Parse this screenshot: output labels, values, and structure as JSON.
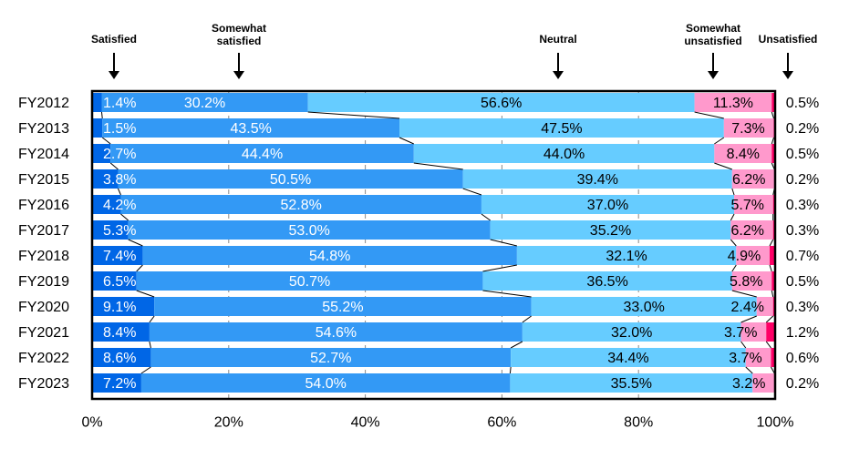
{
  "chart_data": {
    "type": "bar",
    "orientation": "horizontal",
    "stacked": true,
    "percent": true,
    "categories": [
      "FY2012",
      "FY2013",
      "FY2014",
      "FY2015",
      "FY2016",
      "FY2017",
      "FY2018",
      "FY2019",
      "FY2020",
      "FY2021",
      "FY2022",
      "FY2023"
    ],
    "series": [
      {
        "name": "Satisfied",
        "color": "#0066e6",
        "values": [
          1.4,
          1.5,
          2.7,
          3.8,
          4.2,
          5.3,
          7.4,
          6.5,
          9.1,
          8.4,
          8.6,
          7.2
        ],
        "labels": [
          "1.4%",
          "1.5%",
          "2.7%",
          "3.8%",
          "4.2%",
          "5.3%",
          "7.4%",
          "6.5%",
          "9.1%",
          "8.4%",
          "8.6%",
          "7.2%"
        ]
      },
      {
        "name": "Somewhat satisfied",
        "color": "#3399f5",
        "values": [
          30.2,
          43.5,
          44.4,
          50.5,
          52.8,
          53.0,
          54.8,
          50.7,
          55.2,
          54.6,
          52.7,
          54.0
        ],
        "labels": [
          "30.2%",
          "43.5%",
          "44.4%",
          "50.5%",
          "52.8%",
          "53.0%",
          "54.8%",
          "50.7%",
          "55.2%",
          "54.6%",
          "52.7%",
          "54.0%"
        ]
      },
      {
        "name": "Neutral",
        "color": "#66ccff",
        "values": [
          56.6,
          47.5,
          44.0,
          39.4,
          37.0,
          35.2,
          32.1,
          36.5,
          33.0,
          32.0,
          34.4,
          35.5
        ],
        "labels": [
          "56.6%",
          "47.5%",
          "44.0%",
          "39.4%",
          "37.0%",
          "35.2%",
          "32.1%",
          "36.5%",
          "33.0%",
          "32.0%",
          "34.4%",
          "35.5%"
        ]
      },
      {
        "name": "Somewhat unsatisfied",
        "color": "#ff99cc",
        "values": [
          11.3,
          7.3,
          8.4,
          6.2,
          5.7,
          6.2,
          4.9,
          5.8,
          2.4,
          3.7,
          3.7,
          3.2
        ],
        "labels": [
          "11.3%",
          "7.3%",
          "8.4%",
          "6.2%",
          "5.7%",
          "6.2%",
          "4.9%",
          "5.8%",
          "2.4%",
          "3.7%",
          "3.7%",
          "3.2%"
        ]
      },
      {
        "name": "Unsatisfied",
        "color": "#ff0066",
        "values": [
          0.5,
          0.2,
          0.5,
          0.2,
          0.3,
          0.3,
          0.7,
          0.5,
          0.3,
          1.2,
          0.6,
          0.2
        ],
        "labels": [
          "0.5%",
          "0.2%",
          "0.5%",
          "0.2%",
          "0.3%",
          "0.3%",
          "0.7%",
          "0.5%",
          "0.3%",
          "1.2%",
          "0.6%",
          "0.2%"
        ]
      }
    ],
    "legend": {
      "position": "top",
      "labels": [
        "Satisfied",
        "Somewhat\nsatisfied",
        "Neutral",
        "Somewhat\nunsatisfied",
        "Unsatisfied"
      ]
    },
    "xlim": [
      0,
      100
    ],
    "xticks": [
      "0%",
      "20%",
      "40%",
      "60%",
      "80%",
      "100%"
    ],
    "grid": true,
    "title": "",
    "xlabel": "",
    "ylabel": ""
  }
}
